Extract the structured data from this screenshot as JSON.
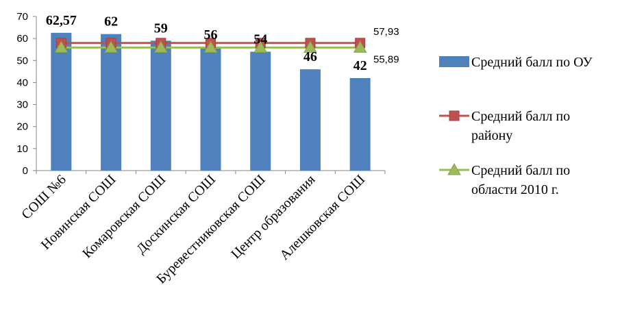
{
  "chart_data": {
    "type": "bar",
    "categories": [
      "СОШ №6",
      "Новинская СОШ",
      "Комаровская СОШ",
      "Доскинская СОШ",
      "Буревестниковская СОШ",
      "Центр образования",
      "Алешковская СОШ"
    ],
    "ylim": [
      0,
      70
    ],
    "yticks": [
      0,
      10,
      20,
      30,
      40,
      50,
      60,
      70
    ],
    "grid": false,
    "legend_position": "right",
    "series": [
      {
        "name": "Средний балл по ОУ",
        "type": "bar",
        "color": "#4f81bd",
        "values": [
          62.57,
          62,
          59,
          56,
          54,
          46,
          42
        ],
        "labels": [
          "62,57",
          "62",
          "59",
          "56",
          "54",
          "46",
          "42"
        ]
      },
      {
        "name": "Средний балл по району",
        "type": "line",
        "marker": "square",
        "color": "#c0504d",
        "values": [
          57.93,
          57.93,
          57.93,
          57.93,
          57.93,
          57.93,
          57.93
        ],
        "end_label": "57,93"
      },
      {
        "name": "Средний балл по области 2010 г.",
        "type": "line",
        "marker": "triangle",
        "color": "#9bbb59",
        "values": [
          55.89,
          55.89,
          55.89,
          55.89,
          55.89,
          55.89,
          55.89
        ],
        "end_label": "55,89"
      }
    ],
    "legend": [
      {
        "lines": [
          "Средний балл по ОУ"
        ]
      },
      {
        "lines": [
          "Средний балл по",
          "району"
        ]
      },
      {
        "lines": [
          "Средний балл по",
          "области 2010 г."
        ]
      }
    ]
  }
}
